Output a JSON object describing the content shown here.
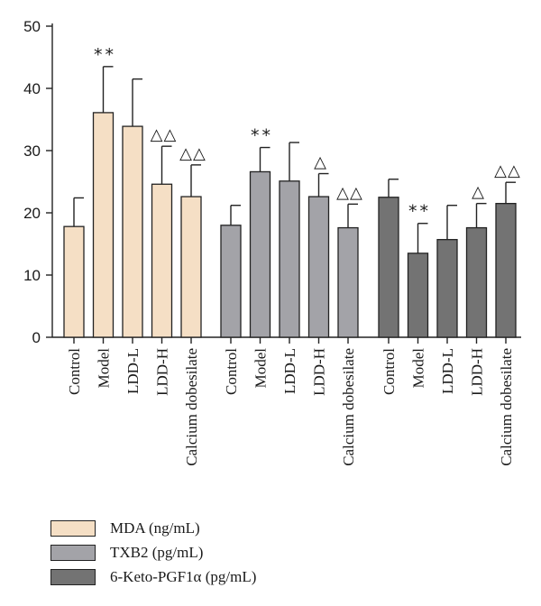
{
  "chart_data": {
    "type": "bar",
    "title": "",
    "xlabel": "",
    "ylabel": "",
    "ylim": [
      0,
      50
    ],
    "yticks": [
      0,
      10,
      20,
      30,
      40,
      50
    ],
    "grid": false,
    "legend_position": "bottom-left",
    "categories": [
      "Control",
      "Model",
      "LDD-L",
      "LDD-H",
      "Calcium dobesilate"
    ],
    "series": [
      {
        "name": "MDA (ng/mL)",
        "color": "#f5dfc5",
        "values": [
          17.8,
          36.1,
          33.9,
          24.6,
          22.6
        ],
        "errors": [
          4.6,
          7.4,
          7.6,
          6.1,
          5.1
        ],
        "marks": [
          "",
          "**",
          "",
          "△△",
          "△△"
        ]
      },
      {
        "name": "TXB2 (pg/mL)",
        "color": "#a3a3a8",
        "values": [
          18.0,
          26.6,
          25.1,
          22.6,
          17.6
        ],
        "errors": [
          3.2,
          3.9,
          6.2,
          3.7,
          3.8
        ],
        "marks": [
          "",
          "**",
          "",
          "△",
          "△△"
        ]
      },
      {
        "name": "6-Keto-PGF1α (pg/mL)",
        "color": "#737373",
        "values": [
          22.5,
          13.5,
          15.7,
          17.6,
          21.5
        ],
        "errors": [
          2.9,
          4.8,
          5.5,
          3.9,
          3.4
        ],
        "marks": [
          "",
          "**",
          "",
          "△",
          "△△"
        ]
      }
    ]
  }
}
